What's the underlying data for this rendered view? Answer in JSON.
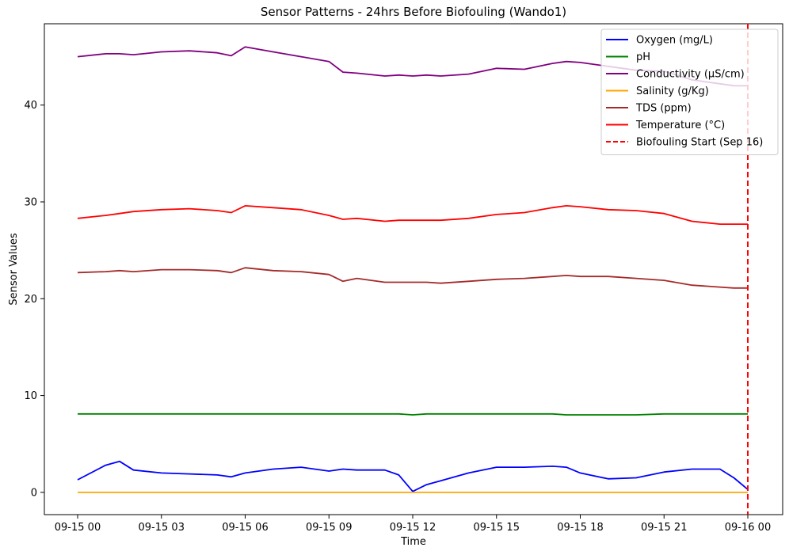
{
  "chart_data": {
    "type": "line",
    "title": "Sensor Patterns - 24hrs Before Biofouling (Wando1)",
    "xlabel": "Time",
    "ylabel": "Sensor Values",
    "x_tick_labels": [
      "09-15 00",
      "09-15 03",
      "09-15 06",
      "09-15 09",
      "09-15 12",
      "09-15 15",
      "09-15 18",
      "09-15 21",
      "09-16 00"
    ],
    "x": [
      "2024-09-15 00:00",
      "2024-09-15 01:00",
      "2024-09-15 01:30",
      "2024-09-15 02:00",
      "2024-09-15 03:00",
      "2024-09-15 04:00",
      "2024-09-15 05:00",
      "2024-09-15 05:30",
      "2024-09-15 06:00",
      "2024-09-15 07:00",
      "2024-09-15 08:00",
      "2024-09-15 09:00",
      "2024-09-15 09:30",
      "2024-09-15 10:00",
      "2024-09-15 11:00",
      "2024-09-15 11:30",
      "2024-09-15 12:00",
      "2024-09-15 12:30",
      "2024-09-15 13:00",
      "2024-09-15 14:00",
      "2024-09-15 15:00",
      "2024-09-15 16:00",
      "2024-09-15 17:00",
      "2024-09-15 17:30",
      "2024-09-15 18:00",
      "2024-09-15 19:00",
      "2024-09-15 20:00",
      "2024-09-15 21:00",
      "2024-09-15 22:00",
      "2024-09-15 23:00",
      "2024-09-15 23:30",
      "2024-09-16 00:00"
    ],
    "ylim": [
      -2.3,
      48.4
    ],
    "y_ticks": [
      0,
      10,
      20,
      30,
      40
    ],
    "grid": false,
    "legend_position": "top-right",
    "series": [
      {
        "name": "Oxygen (mg/L)",
        "color": "#0000ff",
        "dashed": false,
        "values": [
          1.3,
          2.8,
          3.2,
          2.3,
          2.0,
          1.9,
          1.8,
          1.6,
          2.0,
          2.4,
          2.6,
          2.2,
          2.4,
          2.3,
          2.3,
          1.8,
          0.1,
          0.8,
          1.2,
          2.0,
          2.6,
          2.6,
          2.7,
          2.6,
          2.0,
          1.4,
          1.5,
          2.1,
          2.4,
          2.4,
          1.5,
          0.3
        ]
      },
      {
        "name": "pH",
        "color": "#008000",
        "dashed": false,
        "values": [
          8.1,
          8.1,
          8.1,
          8.1,
          8.1,
          8.1,
          8.1,
          8.1,
          8.1,
          8.1,
          8.1,
          8.1,
          8.1,
          8.1,
          8.1,
          8.1,
          8.0,
          8.1,
          8.1,
          8.1,
          8.1,
          8.1,
          8.1,
          8.0,
          8.0,
          8.0,
          8.0,
          8.1,
          8.1,
          8.1,
          8.1,
          8.1
        ]
      },
      {
        "name": "Conductivity (µS/cm)",
        "color": "#800080",
        "dashed": false,
        "values": [
          45.0,
          45.3,
          45.3,
          45.2,
          45.5,
          45.6,
          45.4,
          45.1,
          46.0,
          45.5,
          45.0,
          44.5,
          43.4,
          43.3,
          43.0,
          43.1,
          43.0,
          43.1,
          43.0,
          43.2,
          43.8,
          43.7,
          44.3,
          44.5,
          44.4,
          44.0,
          43.6,
          43.5,
          42.6,
          42.2,
          42.0,
          42.0
        ]
      },
      {
        "name": "Salinity (g/Kg)",
        "color": "#ffa500",
        "dashed": false,
        "values": [
          0,
          0,
          0,
          0,
          0,
          0,
          0,
          0,
          0,
          0,
          0,
          0,
          0,
          0,
          0,
          0,
          0,
          0,
          0,
          0,
          0,
          0,
          0,
          0,
          0,
          0,
          0,
          0,
          0,
          0,
          0,
          0
        ]
      },
      {
        "name": "TDS (ppm)",
        "color": "#a52a2a",
        "dashed": false,
        "values": [
          22.7,
          22.8,
          22.9,
          22.8,
          23.0,
          23.0,
          22.9,
          22.7,
          23.2,
          22.9,
          22.8,
          22.5,
          21.8,
          22.1,
          21.7,
          21.7,
          21.7,
          21.7,
          21.6,
          21.8,
          22.0,
          22.1,
          22.3,
          22.4,
          22.3,
          22.3,
          22.1,
          21.9,
          21.4,
          21.2,
          21.1,
          21.1
        ]
      },
      {
        "name": "Temperature (°C)",
        "color": "#ff0000",
        "dashed": false,
        "values": [
          28.3,
          28.6,
          28.8,
          29.0,
          29.2,
          29.3,
          29.1,
          28.9,
          29.6,
          29.4,
          29.2,
          28.6,
          28.2,
          28.3,
          28.0,
          28.1,
          28.1,
          28.1,
          28.1,
          28.3,
          28.7,
          28.9,
          29.4,
          29.6,
          29.5,
          29.2,
          29.1,
          28.8,
          28.0,
          27.7,
          27.7,
          27.7
        ]
      }
    ],
    "marker": {
      "name": "Biofouling Start (Sep 16)",
      "color": "#ff0000",
      "dashed": true,
      "x": "2024-09-16 00:00"
    }
  }
}
